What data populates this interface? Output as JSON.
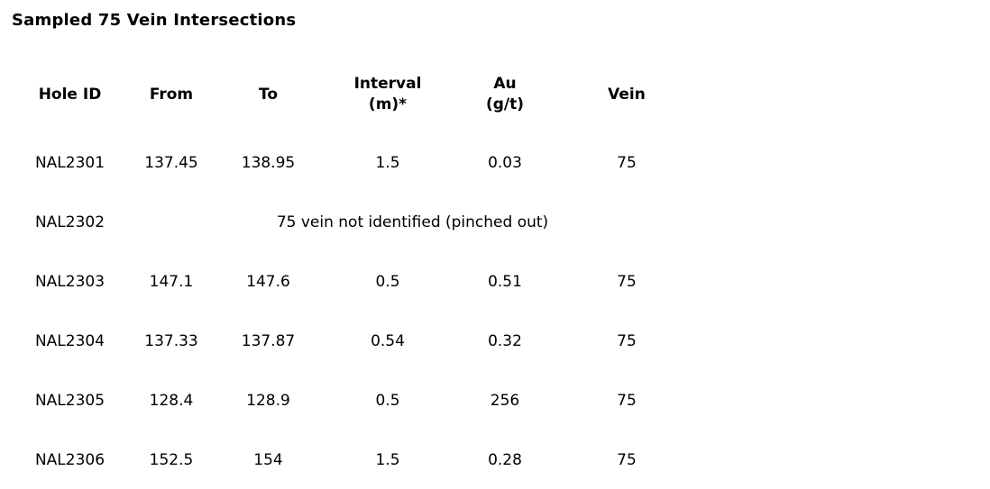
{
  "page": {
    "background_color": "#ffffff",
    "text_color": "#000000"
  },
  "title": "Sampled 75 Vein Intersections",
  "table": {
    "columns": [
      {
        "id": "hole_id",
        "label": "Hole ID"
      },
      {
        "id": "from",
        "label": "From"
      },
      {
        "id": "to",
        "label": "To"
      },
      {
        "id": "interval",
        "label": "Interval\n(m)*"
      },
      {
        "id": "au",
        "label": "Au\n(g/t)"
      },
      {
        "id": "vein",
        "label": "Vein"
      }
    ],
    "rows": [
      {
        "hole_id": "NAL2301",
        "from": "137.45",
        "to": "138.95",
        "interval": "1.5",
        "au": "0.03",
        "vein": "75"
      },
      {
        "hole_id": "NAL2302",
        "note": "75 vein not identified (pinched out)"
      },
      {
        "hole_id": "NAL2303",
        "from": "147.1",
        "to": "147.6",
        "interval": "0.5",
        "au": "0.51",
        "vein": "75"
      },
      {
        "hole_id": "NAL2304",
        "from": "137.33",
        "to": "137.87",
        "interval": "0.54",
        "au": "0.32",
        "vein": "75"
      },
      {
        "hole_id": "NAL2305",
        "from": "128.4",
        "to": "128.9",
        "interval": "0.5",
        "au": "256",
        "vein": "75"
      },
      {
        "hole_id": "NAL2306",
        "from": "152.5",
        "to": "154",
        "interval": "1.5",
        "au": "0.28",
        "vein": "75"
      }
    ]
  },
  "chart_data": {
    "type": "table",
    "title": "Sampled 75 Vein Intersections",
    "columns": [
      "Hole ID",
      "From",
      "To",
      "Interval (m)*",
      "Au (g/t)",
      "Vein"
    ],
    "rows": [
      [
        "NAL2301",
        "137.45",
        "138.95",
        "1.5",
        "0.03",
        "75"
      ],
      [
        "NAL2302",
        "75 vein not identified (pinched out)",
        "",
        "",
        "",
        ""
      ],
      [
        "NAL2303",
        "147.1",
        "147.6",
        "0.5",
        "0.51",
        "75"
      ],
      [
        "NAL2304",
        "137.33",
        "137.87",
        "0.54",
        "0.32",
        "75"
      ],
      [
        "NAL2305",
        "128.4",
        "128.9",
        "0.5",
        "256",
        "75"
      ],
      [
        "NAL2306",
        "152.5",
        "154",
        "1.5",
        "0.28",
        "75"
      ]
    ]
  }
}
